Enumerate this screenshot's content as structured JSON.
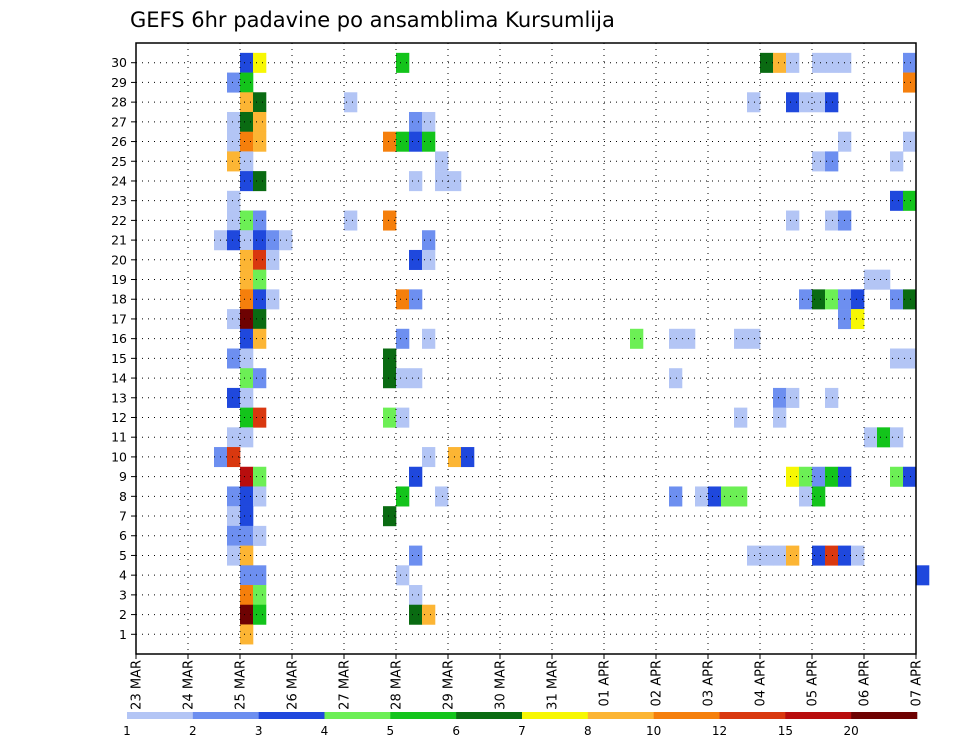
{
  "chart_data": {
    "type": "heatmap",
    "title": "GEFS 6hr padavine po ansamblima Kursumlija",
    "xlabel": "",
    "ylabel": "",
    "x_ticks": [
      "23 MAR",
      "24 MAR",
      "25 MAR",
      "26 MAR",
      "27 MAR",
      "28 MAR",
      "29 MAR",
      "30 MAR",
      "31 MAR",
      "01 APR",
      "02 APR",
      "03 APR",
      "04 APR",
      "05 APR",
      "06 APR",
      "07 APR"
    ],
    "y_ticks": [
      "1",
      "2",
      "3",
      "4",
      "5",
      "6",
      "7",
      "8",
      "9",
      "10",
      "11",
      "12",
      "13",
      "14",
      "15",
      "16",
      "17",
      "18",
      "19",
      "20",
      "21",
      "22",
      "23",
      "24",
      "25",
      "26",
      "27",
      "28",
      "29",
      "30"
    ],
    "time_axis": {
      "start": "23 MAR 00Z",
      "step_hours": 6,
      "steps": 60
    },
    "grid": true,
    "color_scale": {
      "colors": [
        "#b3c5f5",
        "#6d8ff0",
        "#1f48dd",
        "#6cef55",
        "#13c41b",
        "#0a6b12",
        "#f7f703",
        "#fcb534",
        "#f57f0c",
        "#d9380f",
        "#b80d0d",
        "#6e0202"
      ],
      "labels": [
        "1",
        "2",
        "3",
        "4",
        "5",
        "6",
        "7",
        "8",
        "10",
        "12",
        "15",
        "20"
      ]
    },
    "cells": [
      {
        "member": 30,
        "t": "25 MAR 00Z",
        "v": 3
      },
      {
        "member": 30,
        "t": "25 MAR 06Z",
        "v": 7
      },
      {
        "member": 30,
        "t": "28 MAR 00Z",
        "v": 5
      },
      {
        "member": 30,
        "t": "04 APR 00Z",
        "v": 6
      },
      {
        "member": 30,
        "t": "04 APR 06Z",
        "v": 8
      },
      {
        "member": 30,
        "t": "04 APR 12Z",
        "v": 1
      },
      {
        "member": 30,
        "t": "05 APR 00Z",
        "v": 1
      },
      {
        "member": 30,
        "t": "05 APR 06Z",
        "v": 1
      },
      {
        "member": 30,
        "t": "05 APR 12Z",
        "v": 1
      },
      {
        "member": 30,
        "t": "06 APR 18Z",
        "v": 2
      },
      {
        "member": 29,
        "t": "24 MAR 18Z",
        "v": 2
      },
      {
        "member": 29,
        "t": "25 MAR 00Z",
        "v": 5
      },
      {
        "member": 29,
        "t": "06 APR 18Z",
        "v": 10
      },
      {
        "member": 28,
        "t": "25 MAR 00Z",
        "v": 8
      },
      {
        "member": 28,
        "t": "25 MAR 06Z",
        "v": 6
      },
      {
        "member": 28,
        "t": "27 MAR 00Z",
        "v": 1
      },
      {
        "member": 28,
        "t": "03 APR 18Z",
        "v": 1
      },
      {
        "member": 28,
        "t": "04 APR 12Z",
        "v": 3
      },
      {
        "member": 28,
        "t": "04 APR 18Z",
        "v": 1
      },
      {
        "member": 28,
        "t": "05 APR 00Z",
        "v": 1
      },
      {
        "member": 28,
        "t": "05 APR 06Z",
        "v": 3
      },
      {
        "member": 27,
        "t": "24 MAR 18Z",
        "v": 1
      },
      {
        "member": 27,
        "t": "25 MAR 00Z",
        "v": 6
      },
      {
        "member": 27,
        "t": "25 MAR 06Z",
        "v": 8
      },
      {
        "member": 27,
        "t": "28 MAR 06Z",
        "v": 2
      },
      {
        "member": 27,
        "t": "28 MAR 12Z",
        "v": 1
      },
      {
        "member": 26,
        "t": "24 MAR 18Z",
        "v": 1
      },
      {
        "member": 26,
        "t": "25 MAR 00Z",
        "v": 10
      },
      {
        "member": 26,
        "t": "25 MAR 06Z",
        "v": 8
      },
      {
        "member": 26,
        "t": "27 MAR 18Z",
        "v": 10
      },
      {
        "member": 26,
        "t": "28 MAR 00Z",
        "v": 5
      },
      {
        "member": 26,
        "t": "28 MAR 06Z",
        "v": 3
      },
      {
        "member": 26,
        "t": "28 MAR 12Z",
        "v": 5
      },
      {
        "member": 26,
        "t": "05 APR 12Z",
        "v": 1
      },
      {
        "member": 26,
        "t": "06 APR 18Z",
        "v": 1
      },
      {
        "member": 25,
        "t": "24 MAR 18Z",
        "v": 8
      },
      {
        "member": 25,
        "t": "25 MAR 00Z",
        "v": 1
      },
      {
        "member": 25,
        "t": "28 MAR 18Z",
        "v": 1
      },
      {
        "member": 25,
        "t": "05 APR 00Z",
        "v": 1
      },
      {
        "member": 25,
        "t": "05 APR 06Z",
        "v": 2
      },
      {
        "member": 25,
        "t": "06 APR 12Z",
        "v": 1
      },
      {
        "member": 24,
        "t": "25 MAR 00Z",
        "v": 3
      },
      {
        "member": 24,
        "t": "25 MAR 06Z",
        "v": 6
      },
      {
        "member": 24,
        "t": "28 MAR 06Z",
        "v": 1
      },
      {
        "member": 24,
        "t": "28 MAR 18Z",
        "v": 1
      },
      {
        "member": 24,
        "t": "29 MAR 00Z",
        "v": 1
      },
      {
        "member": 23,
        "t": "24 MAR 18Z",
        "v": 1
      },
      {
        "member": 23,
        "t": "06 APR 12Z",
        "v": 3
      },
      {
        "member": 23,
        "t": "06 APR 18Z",
        "v": 5
      },
      {
        "member": 22,
        "t": "24 MAR 18Z",
        "v": 1
      },
      {
        "member": 22,
        "t": "25 MAR 00Z",
        "v": 4
      },
      {
        "member": 22,
        "t": "25 MAR 06Z",
        "v": 2
      },
      {
        "member": 22,
        "t": "27 MAR 00Z",
        "v": 1
      },
      {
        "member": 22,
        "t": "27 MAR 18Z",
        "v": 10
      },
      {
        "member": 22,
        "t": "04 APR 12Z",
        "v": 1
      },
      {
        "member": 22,
        "t": "05 APR 06Z",
        "v": 1
      },
      {
        "member": 22,
        "t": "05 APR 12Z",
        "v": 2
      },
      {
        "member": 21,
        "t": "24 MAR 12Z",
        "v": 1
      },
      {
        "member": 21,
        "t": "24 MAR 18Z",
        "v": 3
      },
      {
        "member": 21,
        "t": "25 MAR 00Z",
        "v": 1
      },
      {
        "member": 21,
        "t": "25 MAR 06Z",
        "v": 3
      },
      {
        "member": 21,
        "t": "25 MAR 12Z",
        "v": 2
      },
      {
        "member": 21,
        "t": "25 MAR 18Z",
        "v": 1
      },
      {
        "member": 21,
        "t": "28 MAR 12Z",
        "v": 2
      },
      {
        "member": 20,
        "t": "25 MAR 00Z",
        "v": 8
      },
      {
        "member": 20,
        "t": "25 MAR 06Z",
        "v": 12
      },
      {
        "member": 20,
        "t": "25 MAR 12Z",
        "v": 1
      },
      {
        "member": 20,
        "t": "28 MAR 06Z",
        "v": 3
      },
      {
        "member": 20,
        "t": "28 MAR 12Z",
        "v": 1
      },
      {
        "member": 19,
        "t": "25 MAR 00Z",
        "v": 8
      },
      {
        "member": 19,
        "t": "25 MAR 06Z",
        "v": 4
      },
      {
        "member": 19,
        "t": "06 APR 00Z",
        "v": 1
      },
      {
        "member": 19,
        "t": "06 APR 06Z",
        "v": 1
      },
      {
        "member": 18,
        "t": "25 MAR 00Z",
        "v": 10
      },
      {
        "member": 18,
        "t": "25 MAR 06Z",
        "v": 3
      },
      {
        "member": 18,
        "t": "25 MAR 12Z",
        "v": 1
      },
      {
        "member": 18,
        "t": "28 MAR 00Z",
        "v": 10
      },
      {
        "member": 18,
        "t": "28 MAR 06Z",
        "v": 2
      },
      {
        "member": 18,
        "t": "04 APR 18Z",
        "v": 2
      },
      {
        "member": 18,
        "t": "05 APR 00Z",
        "v": 6
      },
      {
        "member": 18,
        "t": "05 APR 06Z",
        "v": 4
      },
      {
        "member": 18,
        "t": "05 APR 12Z",
        "v": 2
      },
      {
        "member": 18,
        "t": "05 APR 18Z",
        "v": 3
      },
      {
        "member": 18,
        "t": "06 APR 12Z",
        "v": 2
      },
      {
        "member": 18,
        "t": "06 APR 18Z",
        "v": 6
      },
      {
        "member": 17,
        "t": "24 MAR 18Z",
        "v": 1
      },
      {
        "member": 17,
        "t": "25 MAR 00Z",
        "v": 20
      },
      {
        "member": 17,
        "t": "25 MAR 06Z",
        "v": 6
      },
      {
        "member": 17,
        "t": "05 APR 12Z",
        "v": 2
      },
      {
        "member": 17,
        "t": "05 APR 18Z",
        "v": 7
      },
      {
        "member": 16,
        "t": "25 MAR 00Z",
        "v": 3
      },
      {
        "member": 16,
        "t": "25 MAR 06Z",
        "v": 8
      },
      {
        "member": 16,
        "t": "28 MAR 00Z",
        "v": 2
      },
      {
        "member": 16,
        "t": "28 MAR 12Z",
        "v": 1
      },
      {
        "member": 16,
        "t": "01 APR 12Z",
        "v": 4
      },
      {
        "member": 16,
        "t": "02 APR 06Z",
        "v": 1
      },
      {
        "member": 16,
        "t": "02 APR 12Z",
        "v": 1
      },
      {
        "member": 16,
        "t": "03 APR 12Z",
        "v": 1
      },
      {
        "member": 16,
        "t": "03 APR 18Z",
        "v": 1
      },
      {
        "member": 15,
        "t": "24 MAR 18Z",
        "v": 2
      },
      {
        "member": 15,
        "t": "25 MAR 00Z",
        "v": 1
      },
      {
        "member": 15,
        "t": "27 MAR 18Z",
        "v": 6
      },
      {
        "member": 15,
        "t": "06 APR 12Z",
        "v": 1
      },
      {
        "member": 15,
        "t": "06 APR 18Z",
        "v": 1
      },
      {
        "member": 14,
        "t": "25 MAR 00Z",
        "v": 4
      },
      {
        "member": 14,
        "t": "25 MAR 06Z",
        "v": 2
      },
      {
        "member": 14,
        "t": "27 MAR 18Z",
        "v": 6
      },
      {
        "member": 14,
        "t": "28 MAR 00Z",
        "v": 1
      },
      {
        "member": 14,
        "t": "28 MAR 06Z",
        "v": 1
      },
      {
        "member": 14,
        "t": "02 APR 06Z",
        "v": 1
      },
      {
        "member": 13,
        "t": "24 MAR 18Z",
        "v": 3
      },
      {
        "member": 13,
        "t": "25 MAR 00Z",
        "v": 1
      },
      {
        "member": 13,
        "t": "04 APR 06Z",
        "v": 2
      },
      {
        "member": 13,
        "t": "04 APR 12Z",
        "v": 1
      },
      {
        "member": 13,
        "t": "05 APR 06Z",
        "v": 1
      },
      {
        "member": 12,
        "t": "25 MAR 00Z",
        "v": 5
      },
      {
        "member": 12,
        "t": "25 MAR 06Z",
        "v": 12
      },
      {
        "member": 12,
        "t": "27 MAR 18Z",
        "v": 4
      },
      {
        "member": 12,
        "t": "28 MAR 00Z",
        "v": 1
      },
      {
        "member": 12,
        "t": "03 APR 12Z",
        "v": 1
      },
      {
        "member": 12,
        "t": "04 APR 06Z",
        "v": 1
      },
      {
        "member": 11,
        "t": "24 MAR 18Z",
        "v": 1
      },
      {
        "member": 11,
        "t": "25 MAR 00Z",
        "v": 1
      },
      {
        "member": 11,
        "t": "06 APR 00Z",
        "v": 1
      },
      {
        "member": 11,
        "t": "06 APR 06Z",
        "v": 5
      },
      {
        "member": 11,
        "t": "06 APR 12Z",
        "v": 1
      },
      {
        "member": 10,
        "t": "24 MAR 12Z",
        "v": 2
      },
      {
        "member": 10,
        "t": "24 MAR 18Z",
        "v": 12
      },
      {
        "member": 10,
        "t": "28 MAR 12Z",
        "v": 1
      },
      {
        "member": 10,
        "t": "29 MAR 00Z",
        "v": 8
      },
      {
        "member": 10,
        "t": "29 MAR 06Z",
        "v": 3
      },
      {
        "member": 9,
        "t": "25 MAR 00Z",
        "v": 15
      },
      {
        "member": 9,
        "t": "25 MAR 06Z",
        "v": 4
      },
      {
        "member": 9,
        "t": "28 MAR 06Z",
        "v": 3
      },
      {
        "member": 9,
        "t": "04 APR 12Z",
        "v": 7
      },
      {
        "member": 9,
        "t": "04 APR 18Z",
        "v": 4
      },
      {
        "member": 9,
        "t": "05 APR 00Z",
        "v": 2
      },
      {
        "member": 9,
        "t": "05 APR 06Z",
        "v": 5
      },
      {
        "member": 9,
        "t": "05 APR 12Z",
        "v": 3
      },
      {
        "member": 9,
        "t": "06 APR 12Z",
        "v": 4
      },
      {
        "member": 9,
        "t": "06 APR 18Z",
        "v": 3
      },
      {
        "member": 8,
        "t": "24 MAR 18Z",
        "v": 2
      },
      {
        "member": 8,
        "t": "25 MAR 00Z",
        "v": 3
      },
      {
        "member": 8,
        "t": "25 MAR 06Z",
        "v": 1
      },
      {
        "member": 8,
        "t": "28 MAR 00Z",
        "v": 5
      },
      {
        "member": 8,
        "t": "28 MAR 18Z",
        "v": 1
      },
      {
        "member": 8,
        "t": "02 APR 06Z",
        "v": 2
      },
      {
        "member": 8,
        "t": "02 APR 18Z",
        "v": 1
      },
      {
        "member": 8,
        "t": "03 APR 00Z",
        "v": 3
      },
      {
        "member": 8,
        "t": "03 APR 06Z",
        "v": 4
      },
      {
        "member": 8,
        "t": "03 APR 12Z",
        "v": 4
      },
      {
        "member": 8,
        "t": "04 APR 18Z",
        "v": 1
      },
      {
        "member": 8,
        "t": "05 APR 00Z",
        "v": 5
      },
      {
        "member": 7,
        "t": "24 MAR 18Z",
        "v": 1
      },
      {
        "member": 7,
        "t": "25 MAR 00Z",
        "v": 3
      },
      {
        "member": 7,
        "t": "27 MAR 18Z",
        "v": 6
      },
      {
        "member": 6,
        "t": "24 MAR 18Z",
        "v": 2
      },
      {
        "member": 6,
        "t": "25 MAR 00Z",
        "v": 2
      },
      {
        "member": 6,
        "t": "25 MAR 06Z",
        "v": 1
      },
      {
        "member": 5,
        "t": "24 MAR 18Z",
        "v": 1
      },
      {
        "member": 5,
        "t": "25 MAR 00Z",
        "v": 8
      },
      {
        "member": 5,
        "t": "28 MAR 06Z",
        "v": 2
      },
      {
        "member": 5,
        "t": "03 APR 18Z",
        "v": 1
      },
      {
        "member": 5,
        "t": "04 APR 00Z",
        "v": 1
      },
      {
        "member": 5,
        "t": "04 APR 06Z",
        "v": 1
      },
      {
        "member": 5,
        "t": "04 APR 12Z",
        "v": 8
      },
      {
        "member": 5,
        "t": "05 APR 00Z",
        "v": 3
      },
      {
        "member": 5,
        "t": "05 APR 06Z",
        "v": 12
      },
      {
        "member": 5,
        "t": "05 APR 12Z",
        "v": 3
      },
      {
        "member": 5,
        "t": "05 APR 18Z",
        "v": 1
      },
      {
        "member": 4,
        "t": "25 MAR 00Z",
        "v": 2
      },
      {
        "member": 4,
        "t": "25 MAR 06Z",
        "v": 2
      },
      {
        "member": 4,
        "t": "28 MAR 00Z",
        "v": 1
      },
      {
        "member": 4,
        "t": "07 APR 00Z",
        "v": 3
      },
      {
        "member": 3,
        "t": "25 MAR 00Z",
        "v": 10
      },
      {
        "member": 3,
        "t": "25 MAR 06Z",
        "v": 4
      },
      {
        "member": 3,
        "t": "28 MAR 06Z",
        "v": 1
      },
      {
        "member": 2,
        "t": "25 MAR 00Z",
        "v": 20
      },
      {
        "member": 2,
        "t": "25 MAR 06Z",
        "v": 5
      },
      {
        "member": 2,
        "t": "28 MAR 06Z",
        "v": 6
      },
      {
        "member": 2,
        "t": "28 MAR 12Z",
        "v": 8
      },
      {
        "member": 1,
        "t": "25 MAR 00Z",
        "v": 8
      }
    ]
  }
}
